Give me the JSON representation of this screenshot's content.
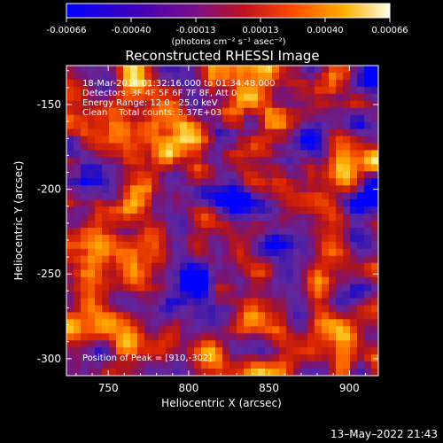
{
  "chart_data": {
    "type": "heatmap",
    "title": "Reconstructed RHESSI Image",
    "xlabel": "Heliocentric X (arcsec)",
    "ylabel": "Heliocentric Y (arcsec)",
    "xlim": [
      724,
      918
    ],
    "ylim": [
      -310,
      -127
    ],
    "x_ticks": [
      750,
      800,
      850,
      900
    ],
    "y_ticks": [
      -150,
      -200,
      -250,
      -300
    ],
    "annotations": [
      "18-Mar-2014 01:32:16.000 to 01:34:48.000",
      "Detectors: 3F 4F 5F 6F 7F 8F, Att 0",
      "Energy Range: 12.0 - 25.0 keV",
      "Clean    Total counts: 3.37E+03"
    ],
    "peak_label": "Position of Peak = [910,-302]",
    "peak": [
      910,
      -302
    ],
    "colorbar": {
      "ticks": [
        "-0.00066",
        "-0.00040",
        "-0.00013",
        "0.00013",
        "0.00040",
        "0.00066"
      ],
      "range": [
        -0.00066,
        0.00066
      ],
      "unit_label": "(photons cm⁻² s⁻¹ asec⁻²)",
      "colors": [
        "#0000ff",
        "#4b00a0",
        "#7a1088",
        "#c01020",
        "#ff5a00",
        "#ffb200",
        "#ffffd0"
      ]
    },
    "grid": false
  },
  "footer": {
    "timestamp": "13–May–2022 21:43"
  }
}
